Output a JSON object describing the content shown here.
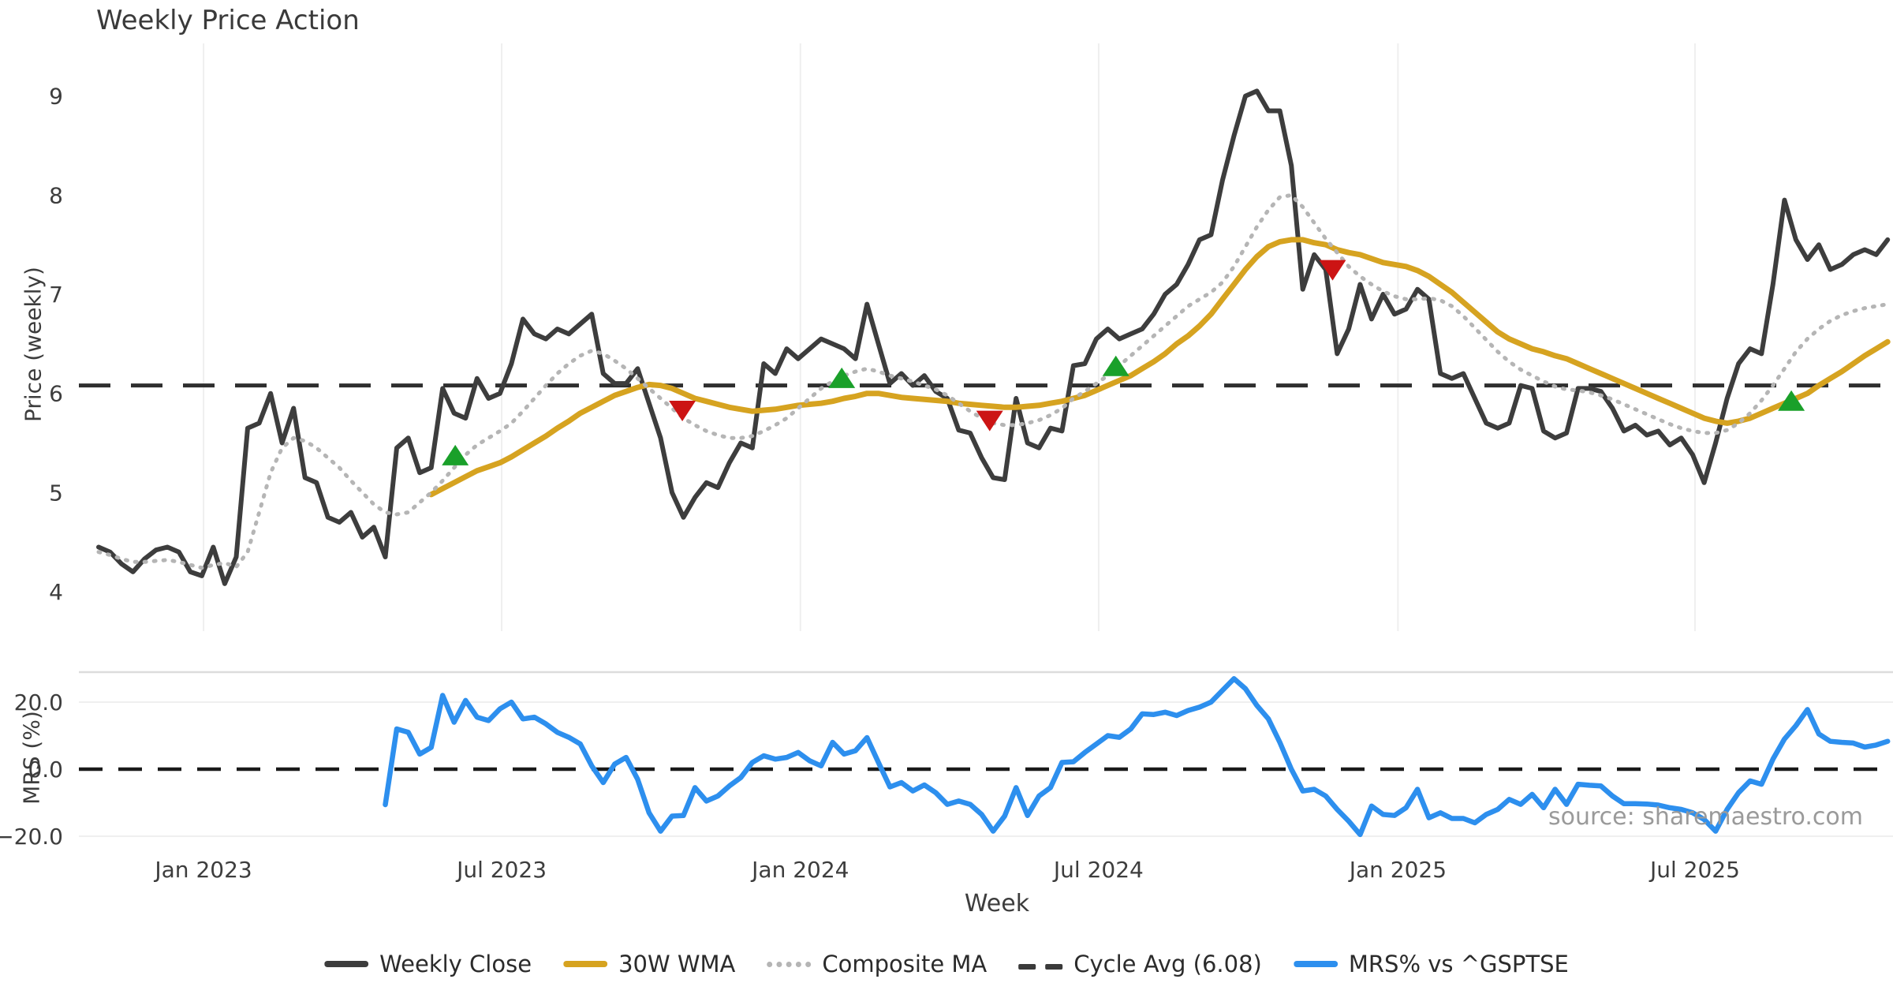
{
  "title": "Weekly Price Action",
  "price_panel": {
    "ylabel": "Price (weekly)",
    "yticks": [
      "9",
      "8",
      "7",
      "6",
      "5",
      "4"
    ],
    "ytick_values": [
      9,
      8,
      7,
      6,
      5,
      4
    ]
  },
  "mrs_panel": {
    "ylabel": "MRS (%)",
    "yticks": [
      "20.0",
      "0.0",
      "−20.0"
    ],
    "ytick_values": [
      20,
      0,
      -20
    ]
  },
  "xlabel": "Week",
  "source": "source: sharemaestro.com",
  "legend": [
    {
      "label": "Weekly Close",
      "type": "solid",
      "color": "#3d3d3d"
    },
    {
      "label": "30W WMA",
      "type": "solid",
      "color": "#d6a320"
    },
    {
      "label": "Composite MA",
      "type": "dotted",
      "color": "#b5b5b5"
    },
    {
      "label": "Cycle Avg (6.08)",
      "type": "dashed",
      "color": "#3a3a3a"
    },
    {
      "label": "MRS% vs ^GSPTSE",
      "type": "solid",
      "color": "#2d8fee"
    }
  ],
  "colors": {
    "weekly_close": "#3d3d3d",
    "wma": "#d6a320",
    "composite": "#b5b5b5",
    "cycle_avg": "#2f2f2f",
    "mrs": "#2d8fee",
    "marker_up": "#1aa02a",
    "marker_down": "#cc1414",
    "grid": "#efefef",
    "panel_border": "#dcdcdc",
    "tick_text": "#3d3d3d"
  },
  "chart_data": {
    "type": "line",
    "title": "Weekly Price Action",
    "xlabel": "Week",
    "x_tick_labels": [
      "Jan 2023",
      "Jul 2023",
      "Jan 2024",
      "Jul 2024",
      "Jan 2025",
      "Jul 2025"
    ],
    "x_tick_weeks": [
      9.15,
      35.15,
      61.2,
      87.2,
      113.3,
      139.2
    ],
    "panels": [
      {
        "name": "price",
        "ylabel": "Price (weekly)",
        "ylim": [
          3.9,
          9.4
        ],
        "yticks": [
          4,
          5,
          6,
          7,
          8,
          9
        ],
        "grid": "vertical-only"
      },
      {
        "name": "mrs",
        "ylabel": "MRS (%)",
        "ylim": [
          -27,
          29
        ],
        "yticks": [
          -20,
          0,
          20
        ],
        "grid": "horizontal-light"
      }
    ],
    "cycle_avg_value": 6.08,
    "mrs_zero_line": 0,
    "series": [
      {
        "name": "Weekly Close",
        "panel": "price",
        "start_week": 0,
        "values": [
          4.45,
          4.4,
          4.28,
          4.2,
          4.33,
          4.42,
          4.45,
          4.4,
          4.2,
          4.16,
          4.45,
          4.08,
          4.35,
          5.65,
          5.7,
          6.0,
          5.5,
          5.85,
          5.15,
          5.1,
          4.75,
          4.7,
          4.8,
          4.55,
          4.65,
          4.35,
          5.45,
          5.55,
          5.2,
          5.25,
          6.05,
          5.8,
          5.75,
          6.15,
          5.95,
          6.0,
          6.3,
          6.75,
          6.6,
          6.55,
          6.65,
          6.6,
          6.7,
          6.8,
          6.2,
          6.1,
          6.1,
          6.25,
          5.9,
          5.55,
          5.0,
          4.75,
          4.95,
          5.1,
          5.05,
          5.3,
          5.5,
          5.45,
          6.3,
          6.2,
          6.45,
          6.35,
          6.45,
          6.55,
          6.5,
          6.45,
          6.35,
          6.9,
          6.5,
          6.1,
          6.2,
          6.08,
          6.18,
          6.02,
          5.95,
          5.63,
          5.6,
          5.35,
          5.15,
          5.13,
          5.95,
          5.5,
          5.45,
          5.65,
          5.62,
          6.28,
          6.3,
          6.55,
          6.65,
          6.55,
          6.6,
          6.65,
          6.8,
          7.0,
          7.1,
          7.3,
          7.55,
          7.6,
          8.15,
          8.6,
          9.0,
          9.05,
          8.85,
          8.85,
          8.3,
          7.05,
          7.4,
          7.25,
          6.4,
          6.65,
          7.1,
          6.75,
          7.0,
          6.8,
          6.85,
          7.05,
          6.95,
          6.2,
          6.15,
          6.2,
          5.95,
          5.7,
          5.65,
          5.7,
          6.08,
          6.05,
          5.62,
          5.55,
          5.6,
          6.05,
          6.05,
          6.02,
          5.85,
          5.62,
          5.68,
          5.58,
          5.62,
          5.48,
          5.55,
          5.38,
          5.1,
          5.5,
          5.95,
          6.3,
          6.45,
          6.4,
          7.1,
          7.95,
          7.55,
          7.35,
          7.5,
          7.25,
          7.3,
          7.4,
          7.45,
          7.4,
          7.55
        ]
      },
      {
        "name": "30W WMA",
        "panel": "price",
        "start_week": 29,
        "values": [
          4.98,
          5.04,
          5.1,
          5.16,
          5.22,
          5.26,
          5.3,
          5.36,
          5.43,
          5.5,
          5.57,
          5.65,
          5.72,
          5.8,
          5.86,
          5.92,
          5.98,
          6.02,
          6.06,
          6.09,
          6.08,
          6.05,
          6.0,
          5.95,
          5.92,
          5.89,
          5.86,
          5.84,
          5.82,
          5.83,
          5.84,
          5.86,
          5.88,
          5.89,
          5.9,
          5.92,
          5.95,
          5.97,
          6.0,
          6.0,
          5.98,
          5.96,
          5.95,
          5.94,
          5.93,
          5.92,
          5.9,
          5.89,
          5.88,
          5.87,
          5.86,
          5.86,
          5.87,
          5.88,
          5.9,
          5.92,
          5.95,
          5.98,
          6.03,
          6.08,
          6.13,
          6.18,
          6.25,
          6.32,
          6.4,
          6.5,
          6.58,
          6.68,
          6.8,
          6.95,
          7.1,
          7.25,
          7.38,
          7.48,
          7.53,
          7.55,
          7.55,
          7.52,
          7.5,
          7.45,
          7.42,
          7.4,
          7.36,
          7.32,
          7.3,
          7.28,
          7.24,
          7.18,
          7.1,
          7.02,
          6.92,
          6.82,
          6.72,
          6.62,
          6.55,
          6.5,
          6.45,
          6.42,
          6.38,
          6.35,
          6.3,
          6.25,
          6.2,
          6.15,
          6.1,
          6.05,
          6.0,
          5.95,
          5.9,
          5.85,
          5.8,
          5.75,
          5.72,
          5.7,
          5.72,
          5.75,
          5.8,
          5.85,
          5.9,
          5.95,
          6.0,
          6.08,
          6.15,
          6.22,
          6.3,
          6.38,
          6.45,
          6.52
        ]
      },
      {
        "name": "Composite MA",
        "panel": "price",
        "start_week": 0,
        "values": [
          4.4,
          4.37,
          4.33,
          4.3,
          4.3,
          4.31,
          4.32,
          4.3,
          4.27,
          4.24,
          4.27,
          4.29,
          4.25,
          4.4,
          4.8,
          5.2,
          5.45,
          5.55,
          5.52,
          5.45,
          5.35,
          5.25,
          5.12,
          5.0,
          4.88,
          4.8,
          4.78,
          4.8,
          4.9,
          5.0,
          5.12,
          5.25,
          5.38,
          5.48,
          5.55,
          5.62,
          5.7,
          5.82,
          5.95,
          6.08,
          6.2,
          6.3,
          6.38,
          6.43,
          6.4,
          6.33,
          6.25,
          6.15,
          6.05,
          5.95,
          5.85,
          5.75,
          5.68,
          5.62,
          5.58,
          5.55,
          5.55,
          5.57,
          5.62,
          5.68,
          5.75,
          5.85,
          5.95,
          6.05,
          6.12,
          6.18,
          6.22,
          6.25,
          6.22,
          6.18,
          6.15,
          6.12,
          6.08,
          6.04,
          5.98,
          5.9,
          5.82,
          5.75,
          5.7,
          5.68,
          5.68,
          5.7,
          5.73,
          5.78,
          5.85,
          5.95,
          6.02,
          6.1,
          6.18,
          6.28,
          6.38,
          6.48,
          6.58,
          6.68,
          6.78,
          6.88,
          6.95,
          7.02,
          7.12,
          7.28,
          7.48,
          7.68,
          7.85,
          7.98,
          8.0,
          7.88,
          7.72,
          7.56,
          7.42,
          7.28,
          7.18,
          7.1,
          7.03,
          6.98,
          6.95,
          6.95,
          6.96,
          6.94,
          6.88,
          6.78,
          6.66,
          6.54,
          6.42,
          6.32,
          6.24,
          6.18,
          6.12,
          6.07,
          6.04,
          6.03,
          6.01,
          5.98,
          5.94,
          5.89,
          5.84,
          5.79,
          5.74,
          5.69,
          5.65,
          5.62,
          5.6,
          5.6,
          5.63,
          5.7,
          5.8,
          5.93,
          6.08,
          6.25,
          6.42,
          6.55,
          6.65,
          6.73,
          6.79,
          6.83,
          6.86,
          6.88,
          6.9
        ]
      },
      {
        "name": "MRS% vs ^GSPTSE",
        "panel": "mrs",
        "start_week": 25,
        "values": [
          -10.6,
          12,
          11,
          4.5,
          6.5,
          22,
          14,
          20.5,
          15.5,
          14.5,
          18,
          20,
          15,
          15.5,
          13.5,
          11,
          9.5,
          7.5,
          1,
          -4,
          1.5,
          3.5,
          -3,
          -13,
          -18.5,
          -14,
          -13.8,
          -5.5,
          -9.5,
          -8,
          -5,
          -2.5,
          2,
          4,
          3,
          3.5,
          5,
          2.5,
          1,
          8,
          4.5,
          5.5,
          9.4,
          2,
          -5.3,
          -4,
          -6.5,
          -4.7,
          -7,
          -10.5,
          -9.5,
          -10.5,
          -13.5,
          -18.5,
          -14,
          -5.5,
          -13.8,
          -8,
          -5.5,
          2,
          2.2,
          5,
          7.5,
          10,
          9.5,
          12,
          16.5,
          16.3,
          17,
          16,
          17.5,
          18.5,
          20,
          23.5,
          27,
          24,
          19,
          15,
          8,
          0,
          -6.5,
          -6,
          -8,
          -12,
          -15.5,
          -19.5,
          -11,
          -13.5,
          -13.8,
          -11.5,
          -6,
          -14.5,
          -13,
          -14.7,
          -14.7,
          -16,
          -13.5,
          -12,
          -9,
          -10.5,
          -7.5,
          -11.5,
          -6,
          -10.5,
          -4.5,
          -4.8,
          -5,
          -8,
          -10.3,
          -10.3,
          -10.4,
          -10.7,
          -11.5,
          -12,
          -13,
          -15,
          -18.5,
          -12,
          -7,
          -3.5,
          -4.5,
          3,
          9,
          13,
          17.8,
          10.5,
          8.3,
          8,
          7.8,
          6.6,
          7.2,
          8.3
        ]
      }
    ],
    "markers": {
      "up": [
        {
          "week": 31.1,
          "price": 5.37
        },
        {
          "week": 64.8,
          "price": 6.15
        },
        {
          "week": 88.7,
          "price": 6.27
        },
        {
          "week": 147.6,
          "price": 5.92
        }
      ],
      "down": [
        {
          "week": 50.9,
          "price": 5.83
        },
        {
          "week": 77.7,
          "price": 5.73
        },
        {
          "week": 107.6,
          "price": 7.25
        }
      ]
    },
    "legend_position": "bottom-center"
  }
}
